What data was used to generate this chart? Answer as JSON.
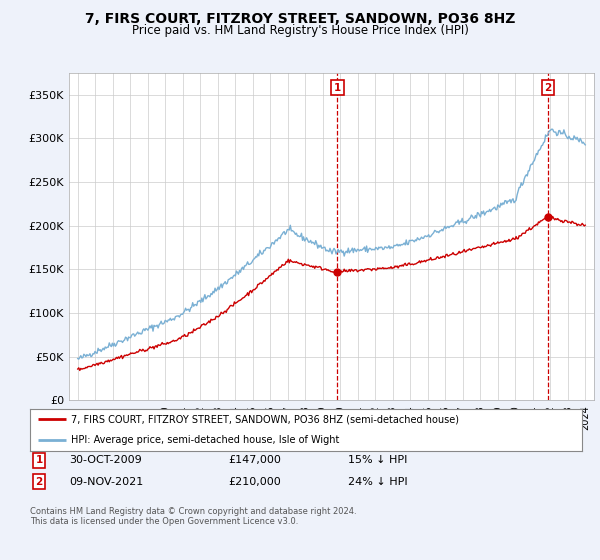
{
  "title": "7, FIRS COURT, FITZROY STREET, SANDOWN, PO36 8HZ",
  "subtitle": "Price paid vs. HM Land Registry's House Price Index (HPI)",
  "legend_label_red": "7, FIRS COURT, FITZROY STREET, SANDOWN, PO36 8HZ (semi-detached house)",
  "legend_label_blue": "HPI: Average price, semi-detached house, Isle of Wight",
  "footnote": "Contains HM Land Registry data © Crown copyright and database right 2024.\nThis data is licensed under the Open Government Licence v3.0.",
  "transactions": [
    {
      "label": "1",
      "date": "30-OCT-2009",
      "price": "£147,000",
      "pct": "15% ↓ HPI",
      "year": 2009.83
    },
    {
      "label": "2",
      "date": "09-NOV-2021",
      "price": "£210,000",
      "pct": "24% ↓ HPI",
      "year": 2021.86
    }
  ],
  "t1_price": 147000,
  "t2_price": 210000,
  "ylim": [
    0,
    375000
  ],
  "yticks": [
    0,
    50000,
    100000,
    150000,
    200000,
    250000,
    300000,
    350000
  ],
  "ytick_labels": [
    "£0",
    "£50K",
    "£100K",
    "£150K",
    "£200K",
    "£250K",
    "£300K",
    "£350K"
  ],
  "xlim_start": 1994.5,
  "xlim_end": 2024.5,
  "background_color": "#eef2fa",
  "plot_bg": "#ffffff",
  "red_color": "#cc0000",
  "blue_color": "#7ab0d4",
  "vline_color": "#cc0000",
  "box_color": "#cc0000",
  "grid_color": "#cccccc"
}
